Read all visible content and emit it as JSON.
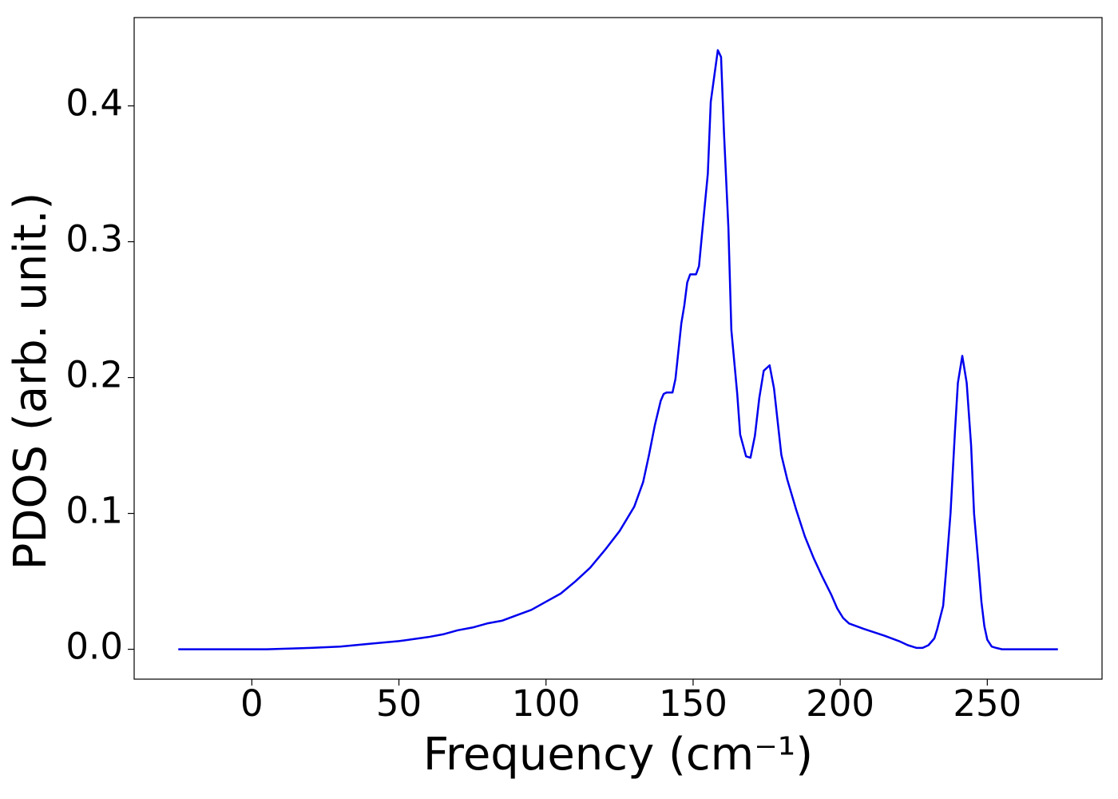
{
  "chart_data": {
    "type": "line",
    "xlabel": "Frequency (cm⁻¹)",
    "ylabel": "PDOS (arb. unit.)",
    "x": [
      -25,
      0,
      5,
      20,
      30,
      40,
      50,
      60,
      65,
      70,
      75,
      80,
      85,
      90,
      95,
      100,
      105,
      110,
      115,
      120,
      125,
      130,
      133,
      135,
      137,
      139,
      140,
      141,
      143,
      144,
      146,
      147,
      148,
      149,
      151,
      152,
      153,
      155,
      156,
      158.4,
      159.5,
      160.5,
      162,
      163,
      165,
      166,
      168,
      169.5,
      171,
      172.5,
      174,
      176,
      177.5,
      180,
      182,
      185,
      188,
      191,
      194,
      197,
      199,
      201,
      203,
      208,
      215,
      220,
      223,
      226,
      228,
      230,
      232,
      233,
      235,
      236,
      237.5,
      239,
      240,
      241.5,
      243,
      244.5,
      245.5,
      247,
      248,
      249,
      250,
      251.5,
      253,
      255,
      274
    ],
    "series": [
      {
        "name": "PDOS",
        "color": "#0000ee",
        "values": [
          0,
          0,
          0,
          0.001,
          0.002,
          0.004,
          0.006,
          0.009,
          0.011,
          0.014,
          0.016,
          0.019,
          0.021,
          0.025,
          0.029,
          0.035,
          0.041,
          0.05,
          0.06,
          0.073,
          0.087,
          0.105,
          0.123,
          0.143,
          0.165,
          0.183,
          0.188,
          0.189,
          0.189,
          0.199,
          0.24,
          0.253,
          0.27,
          0.276,
          0.276,
          0.282,
          0.305,
          0.35,
          0.403,
          0.441,
          0.436,
          0.38,
          0.31,
          0.235,
          0.188,
          0.158,
          0.142,
          0.141,
          0.157,
          0.185,
          0.205,
          0.209,
          0.192,
          0.143,
          0.125,
          0.103,
          0.083,
          0.067,
          0.053,
          0.04,
          0.03,
          0.023,
          0.019,
          0.015,
          0.01,
          0.006,
          0.003,
          0.001,
          0.001,
          0.003,
          0.008,
          0.015,
          0.032,
          0.058,
          0.1,
          0.16,
          0.196,
          0.216,
          0.196,
          0.15,
          0.1,
          0.062,
          0.035,
          0.017,
          0.007,
          0.002,
          0.001,
          0,
          0
        ]
      }
    ],
    "xlim": [
      -40,
      289
    ],
    "ylim": [
      -0.022,
      0.465
    ],
    "xticks": [
      0,
      50,
      100,
      150,
      200,
      250
    ],
    "yticks": [
      {
        "value": 0,
        "label": "0.0"
      },
      0.1,
      0.2,
      0.3,
      0.4
    ],
    "grid": false
  }
}
